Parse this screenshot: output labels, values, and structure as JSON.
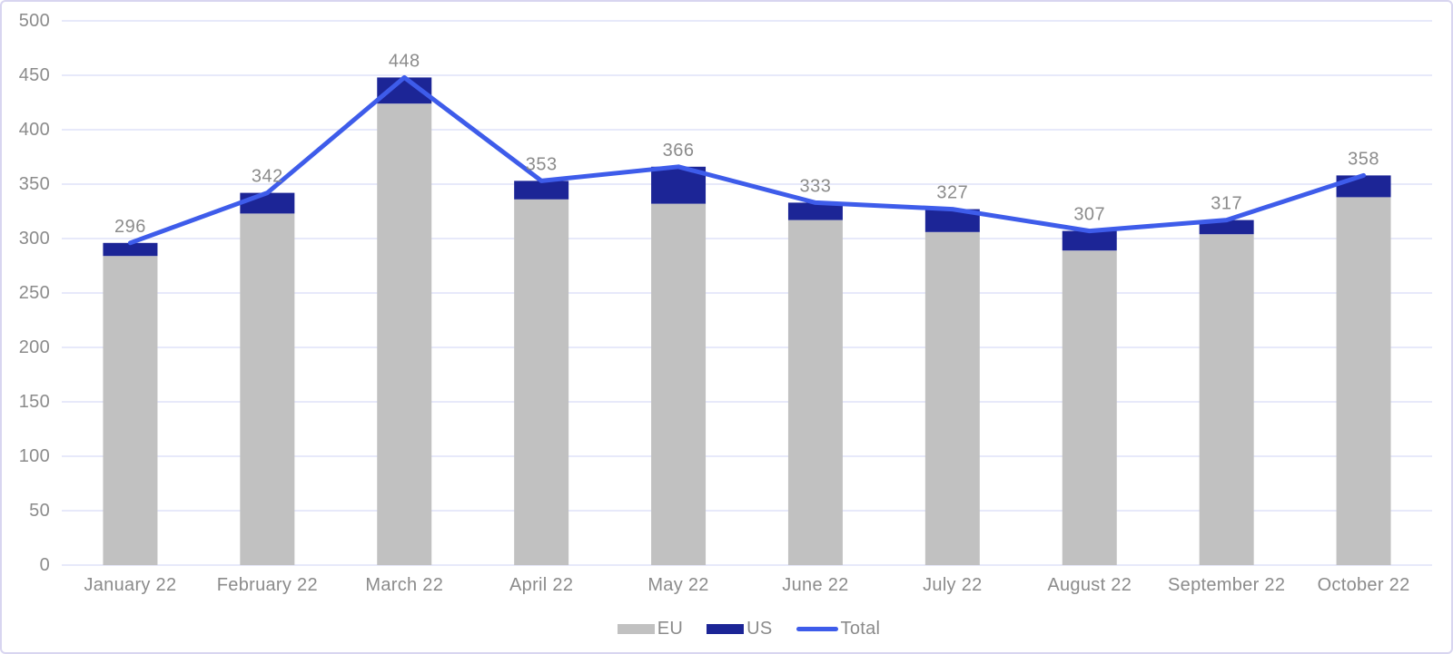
{
  "chart_data": {
    "type": "bar",
    "subtype": "stacked-bars-with-line-overlay",
    "title": "",
    "xlabel": "",
    "ylabel": "",
    "categories": [
      "January 22",
      "February 22",
      "March 22",
      "April 22",
      "May 22",
      "June 22",
      "July 22",
      "August 22",
      "September 22",
      "October 22"
    ],
    "series": [
      {
        "name": "EU",
        "type": "bar",
        "color": "#c1c1c1",
        "values": [
          284,
          323,
          424,
          336,
          332,
          317,
          306,
          289,
          304,
          338
        ]
      },
      {
        "name": "US",
        "type": "bar",
        "color": "#1c2596",
        "values": [
          12,
          19,
          24,
          17,
          34,
          16,
          21,
          18,
          13,
          20
        ]
      },
      {
        "name": "Total",
        "type": "line",
        "color": "#3e5cea",
        "values": [
          296,
          342,
          448,
          353,
          366,
          333,
          327,
          307,
          317,
          358
        ]
      }
    ],
    "data_labels": [
      296,
      342,
      448,
      353,
      366,
      333,
      327,
      307,
      317,
      358
    ],
    "y_axis": {
      "min": 0,
      "max": 500,
      "step": 50,
      "ticks": [
        0,
        50,
        100,
        150,
        200,
        250,
        300,
        350,
        400,
        450,
        500
      ]
    },
    "grid": true,
    "legend": {
      "position": "bottom-center",
      "entries": [
        {
          "label": "EU",
          "swatch": "bar",
          "color": "#c1c1c1"
        },
        {
          "label": "US",
          "swatch": "bar",
          "color": "#1c2596"
        },
        {
          "label": "Total",
          "swatch": "line",
          "color": "#3e5cea"
        }
      ]
    },
    "colors": {
      "background": "#ffffff",
      "frame_border": "#d8d5f0",
      "gridline": "#dfe2f8",
      "axis_text": "#8b8b8b",
      "data_label_text": "#8b8b8b"
    }
  }
}
